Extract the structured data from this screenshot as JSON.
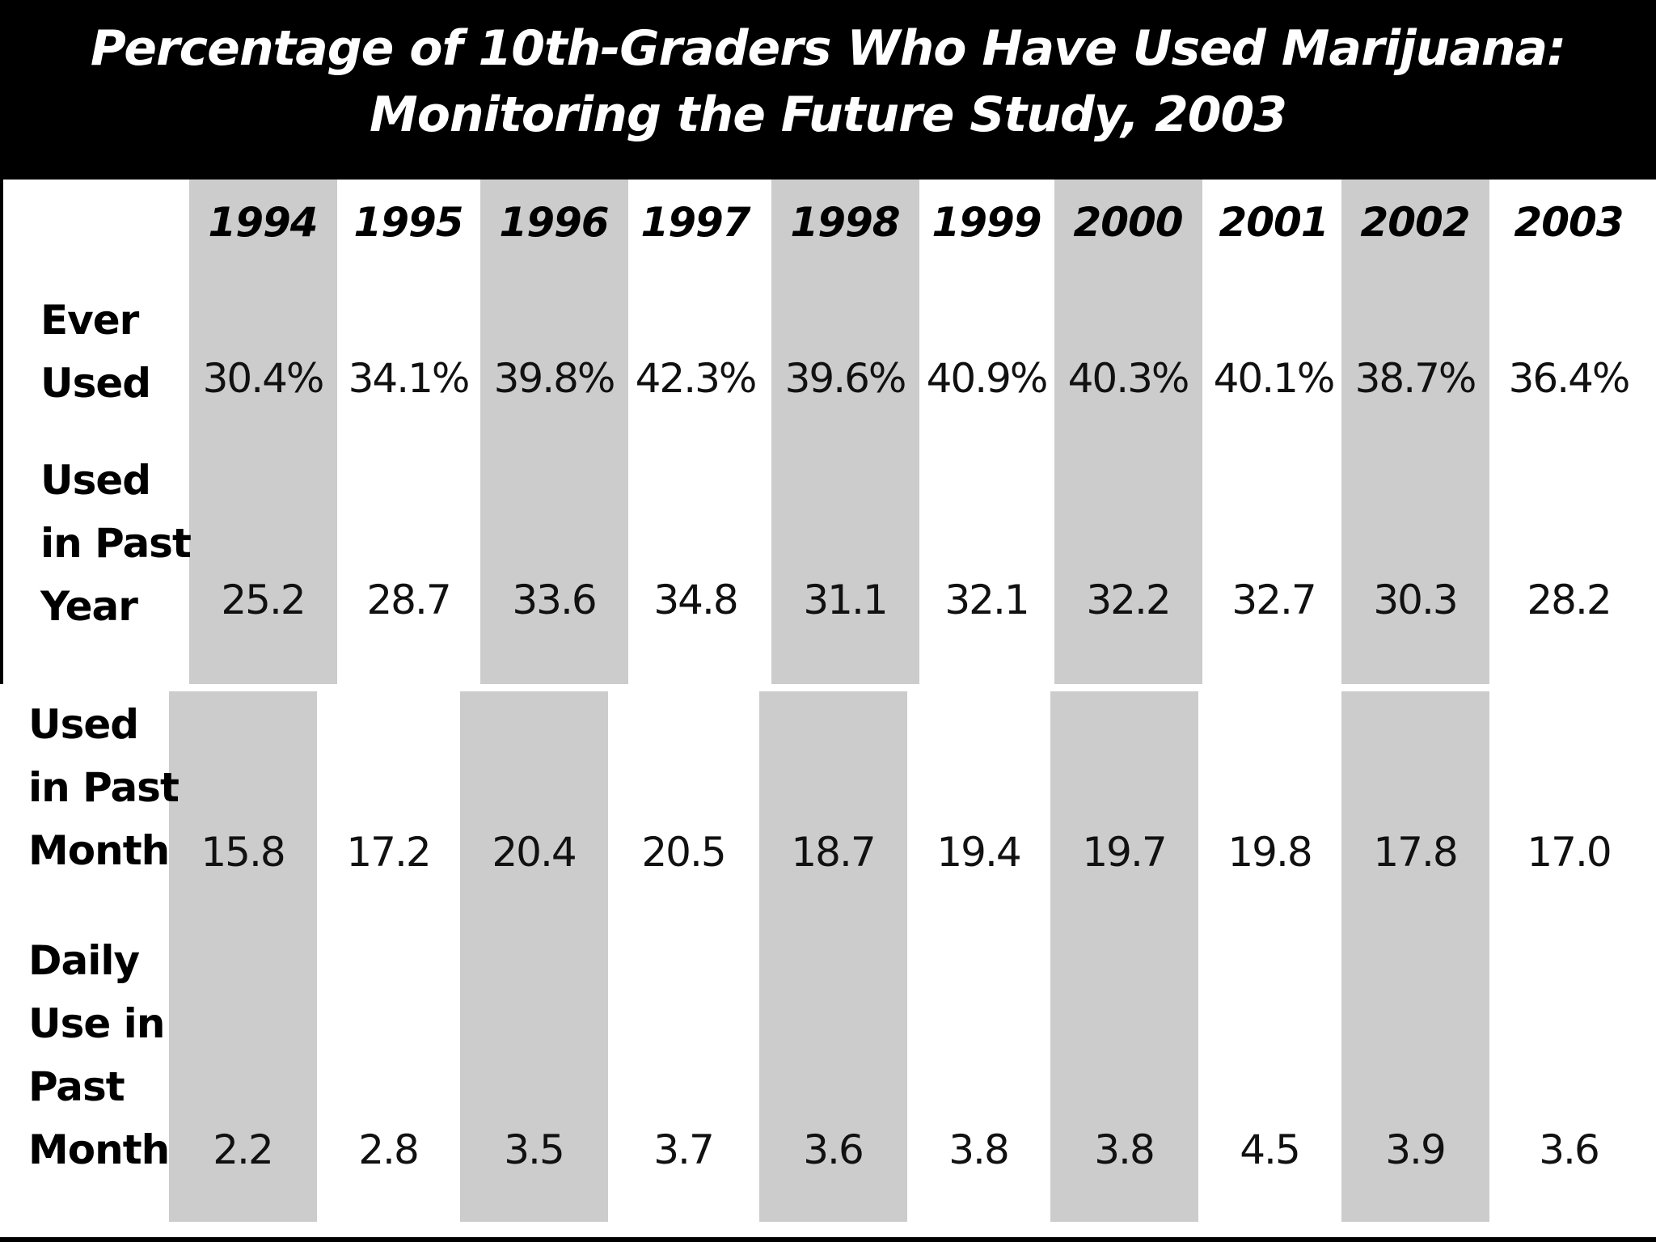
{
  "header": {
    "title_line_1": "Percentage of 10th-Graders Who Have Used Marijuana:",
    "title_line_2": "Monitoring the Future Study, 2003"
  },
  "colors": {
    "header_background": "#000000",
    "header_text": "#ffffff",
    "shaded_column": "#cccccc"
  },
  "chart_data": {
    "type": "table",
    "title": "Percentage of 10th-Graders Who Have Used Marijuana: Monitoring the Future Study, 2003",
    "columns": [
      "1994",
      "1995",
      "1996",
      "1997",
      "1998",
      "1999",
      "2000",
      "2001",
      "2002",
      "2003"
    ],
    "rows": [
      {
        "label": "Ever\nUsed",
        "values": [
          "30.4%",
          "34.1%",
          "39.8%",
          "42.3%",
          "39.6%",
          "40.9%",
          "40.3%",
          "40.1%",
          "38.7%",
          "36.4%"
        ]
      },
      {
        "label": "Used\nin Past\nYear",
        "values": [
          "25.2",
          "28.7",
          "33.6",
          "34.8",
          "31.1",
          "32.1",
          "32.2",
          "32.7",
          "30.3",
          "28.2"
        ]
      },
      {
        "label": "Used\nin Past\nMonth",
        "values": [
          "15.8",
          "17.2",
          "20.4",
          "20.5",
          "18.7",
          "19.4",
          "19.7",
          "19.8",
          "17.8",
          "17.0"
        ]
      },
      {
        "label": "Daily\nUse in\nPast\nMonth",
        "values": [
          "2.2",
          "2.8",
          "3.5",
          "3.7",
          "3.6",
          "3.8",
          "3.8",
          "4.5",
          "3.9",
          "3.6"
        ]
      }
    ]
  }
}
